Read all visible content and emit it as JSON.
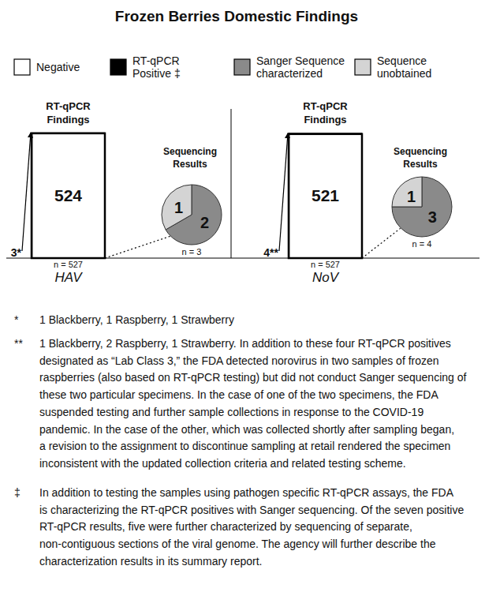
{
  "title": "Frozen Berries Domestic Findings",
  "legend": [
    {
      "lines": [
        "Negative"
      ],
      "color": "#ffffff"
    },
    {
      "lines": [
        "RT-qPCR",
        "Positive ‡"
      ],
      "color": "#000000"
    },
    {
      "lines": [
        "Sanger Sequence",
        "characterized"
      ],
      "color": "#8a8a8a"
    },
    {
      "lines": [
        "Sequence",
        "unobtained"
      ],
      "color": "#d4d4d4"
    }
  ],
  "chart_data": [
    {
      "type": "bar",
      "stacked": true,
      "title": "RT-qPCR Findings",
      "categories": [
        "HAV"
      ],
      "series": [
        {
          "color": "#ffffff",
          "values": [
            524
          ]
        },
        {
          "color": "#000000",
          "values": [
            3
          ],
          "value_labels": [
            "3*"
          ]
        }
      ],
      "ylim": [
        0,
        527
      ],
      "yticks": [],
      "tick_labels": "x",
      "data_labels": true,
      "note": "n = 527"
    },
    {
      "type": "pie",
      "title": "Sequencing Results",
      "values": [
        2,
        1
      ],
      "colors": [
        "#8a8a8a",
        "#d4d4d4"
      ],
      "data_labels": true,
      "note": "n = 3"
    },
    {
      "type": "bar",
      "stacked": true,
      "title": "RT-qPCR Findings",
      "categories": [
        "NoV"
      ],
      "series": [
        {
          "color": "#ffffff",
          "values": [
            521
          ]
        },
        {
          "color": "#000000",
          "values": [
            4
          ],
          "value_labels": [
            "4**"
          ]
        }
      ],
      "ylim": [
        0,
        527
      ],
      "yticks": [],
      "tick_labels": "x",
      "data_labels": true,
      "note": "n = 527"
    },
    {
      "type": "pie",
      "title": "Sequencing Results",
      "values": [
        3,
        1
      ],
      "colors": [
        "#8a8a8a",
        "#d4d4d4"
      ],
      "data_labels": true,
      "note": "n = 4"
    }
  ],
  "footnotes": [
    {
      "marker": "*",
      "lines": [
        "1 Blackberry, 1 Raspberry, 1 Strawberry"
      ]
    },
    {
      "marker": "**",
      "lines": [
        "1 Blackberry, 2 Raspberry, 1 Strawberry. In addition to these four RT-qPCR positives",
        "designated as “Lab Class 3,” the FDA detected norovirus in two samples of frozen",
        "raspberries (also based on RT-qPCR testing) but did not conduct Sanger sequencing of",
        "these two particular specimens. In the case of one of the two specimens, the FDA",
        "suspended testing and further sample collections in response to the COVID-19",
        "pandemic. In the case of the other, which was collected shortly after sampling began,",
        "a revision to the assignment to discontinue sampling at retail rendered the specimen",
        "inconsistent with the updated collection criteria and related testing scheme."
      ]
    },
    {
      "marker": "‡",
      "lines": [
        "In addition to testing the samples using pathogen specific RT-qPCR assays, the FDA",
        "is characterizing the RT-qPCR positives with Sanger sequencing. Of the seven positive",
        "RT-qPCR results, five were further characterized by sequencing of separate,",
        "non-contiguous sections of the viral genome. The agency will further describe the",
        "characterization results in its summary report."
      ]
    }
  ]
}
